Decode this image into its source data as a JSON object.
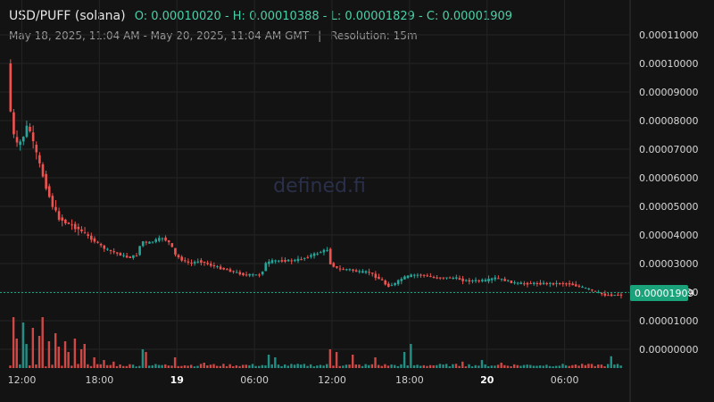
{
  "header": {
    "pair": "USD/PUFF (solana)",
    "ohlc": "O: 0.00010020 - H: 0.00010388 - L: 0.00001829 - C: 0.00001909",
    "range": "May 18, 2025, 11:04 AM - May 20, 2025, 11:04 AM GMT",
    "separator": "|",
    "resolution": "Resolution: 15m"
  },
  "watermark": "defined.fi",
  "colors": {
    "up": "#26a69a",
    "down": "#ef5350",
    "last_price_bg": "#1aa37a",
    "background": "#131313"
  },
  "chart_data": {
    "type": "candlestick",
    "title": "USD/PUFF (solana)",
    "resolution": "15m",
    "y_ticks": [
      "0.00011000",
      "0.00010000",
      "0.00009000",
      "0.00008000",
      "0.00007000",
      "0.00006000",
      "0.00005000",
      "0.00004000",
      "0.00003000",
      "0.00002000",
      "0.00001000",
      "0.00000000"
    ],
    "x_ticks": [
      {
        "label": "12:00",
        "hours": 1.0,
        "bold": false
      },
      {
        "label": "18:00",
        "hours": 7.0,
        "bold": false
      },
      {
        "label": "19",
        "hours": 13.0,
        "bold": true
      },
      {
        "label": "06:00",
        "hours": 19.0,
        "bold": false
      },
      {
        "label": "12:00",
        "hours": 25.0,
        "bold": false
      },
      {
        "label": "18:00",
        "hours": 31.0,
        "bold": false
      },
      {
        "label": "20",
        "hours": 37.0,
        "bold": true
      },
      {
        "label": "06:00",
        "hours": 43.0,
        "bold": false
      }
    ],
    "last_price": "0.00001909",
    "price_path": [
      [
        0.0,
        0.0001
      ],
      [
        0.15,
        8.8e-05
      ],
      [
        0.4,
        7.6e-05
      ],
      [
        0.8,
        7.1e-05
      ],
      [
        1.2,
        7.4e-05
      ],
      [
        1.6,
        7.9e-05
      ],
      [
        2.0,
        7.2e-05
      ],
      [
        2.4,
        6.6e-05
      ],
      [
        2.8,
        6e-05
      ],
      [
        3.2,
        5.4e-05
      ],
      [
        3.6,
        4.9e-05
      ],
      [
        4.0,
        4.6e-05
      ],
      [
        4.6,
        4.4e-05
      ],
      [
        5.2,
        4.3e-05
      ],
      [
        5.8,
        4.1e-05
      ],
      [
        6.4,
        3.9e-05
      ],
      [
        7.0,
        3.7e-05
      ],
      [
        7.6,
        3.5e-05
      ],
      [
        8.2,
        3.4e-05
      ],
      [
        8.8,
        3.3e-05
      ],
      [
        9.4,
        3.2e-05
      ],
      [
        10.0,
        3.3e-05
      ],
      [
        10.4,
        3.8e-05
      ],
      [
        10.8,
        3.7e-05
      ],
      [
        11.4,
        3.8e-05
      ],
      [
        12.0,
        3.9e-05
      ],
      [
        12.6,
        3.7e-05
      ],
      [
        13.0,
        3.3e-05
      ],
      [
        13.6,
        3.1e-05
      ],
      [
        14.2,
        3e-05
      ],
      [
        14.8,
        3.1e-05
      ],
      [
        15.4,
        3e-05
      ],
      [
        16.0,
        2.9e-05
      ],
      [
        16.8,
        2.8e-05
      ],
      [
        17.6,
        2.7e-05
      ],
      [
        18.4,
        2.6e-05
      ],
      [
        19.0,
        2.6e-05
      ],
      [
        19.6,
        2.6e-05
      ],
      [
        20.0,
        3e-05
      ],
      [
        20.6,
        3.1e-05
      ],
      [
        21.4,
        3.1e-05
      ],
      [
        22.2,
        3.1e-05
      ],
      [
        23.0,
        3.2e-05
      ],
      [
        23.6,
        3.3e-05
      ],
      [
        24.2,
        3.4e-05
      ],
      [
        24.8,
        3.5e-05
      ],
      [
        25.0,
        3e-05
      ],
      [
        25.6,
        2.8e-05
      ],
      [
        26.4,
        2.8e-05
      ],
      [
        27.2,
        2.7e-05
      ],
      [
        28.0,
        2.7e-05
      ],
      [
        28.6,
        2.5e-05
      ],
      [
        29.0,
        2.4e-05
      ],
      [
        29.4,
        2.2e-05
      ],
      [
        30.0,
        2.3e-05
      ],
      [
        30.6,
        2.5e-05
      ],
      [
        31.4,
        2.6e-05
      ],
      [
        32.2,
        2.6e-05
      ],
      [
        33.0,
        2.5e-05
      ],
      [
        33.8,
        2.5e-05
      ],
      [
        34.6,
        2.5e-05
      ],
      [
        35.4,
        2.4e-05
      ],
      [
        36.2,
        2.4e-05
      ],
      [
        37.0,
        2.4e-05
      ],
      [
        37.8,
        2.5e-05
      ],
      [
        38.6,
        2.4e-05
      ],
      [
        39.4,
        2.3e-05
      ],
      [
        40.2,
        2.3e-05
      ],
      [
        41.0,
        2.3e-05
      ],
      [
        41.8,
        2.3e-05
      ],
      [
        42.6,
        2.3e-05
      ],
      [
        43.4,
        2.3e-05
      ],
      [
        44.2,
        2.2e-05
      ],
      [
        45.0,
        2.1e-05
      ],
      [
        45.6,
        2e-05
      ],
      [
        46.2,
        1.9e-05
      ],
      [
        46.8,
        1.9e-05
      ],
      [
        47.6,
        1.9e-05
      ]
    ],
    "volume_spikes": [
      [
        0.2,
        0.95
      ],
      [
        0.6,
        0.55
      ],
      [
        1.0,
        0.85
      ],
      [
        1.3,
        0.45
      ],
      [
        1.8,
        0.75
      ],
      [
        2.2,
        0.6
      ],
      [
        2.6,
        0.95
      ],
      [
        3.0,
        0.5
      ],
      [
        3.4,
        0.65
      ],
      [
        3.8,
        0.4
      ],
      [
        4.2,
        0.5
      ],
      [
        4.6,
        0.3
      ],
      [
        5.0,
        0.55
      ],
      [
        5.4,
        0.35
      ],
      [
        5.8,
        0.45
      ],
      [
        6.4,
        0.2
      ],
      [
        7.2,
        0.15
      ],
      [
        8.0,
        0.12
      ],
      [
        10.2,
        0.35
      ],
      [
        10.6,
        0.3
      ],
      [
        12.8,
        0.2
      ],
      [
        15.0,
        0.1
      ],
      [
        20.0,
        0.25
      ],
      [
        20.6,
        0.2
      ],
      [
        24.8,
        0.35
      ],
      [
        25.2,
        0.3
      ],
      [
        26.6,
        0.25
      ],
      [
        28.2,
        0.2
      ],
      [
        30.4,
        0.3
      ],
      [
        31.0,
        0.45
      ],
      [
        35.0,
        0.12
      ],
      [
        36.4,
        0.15
      ],
      [
        38.0,
        0.1
      ],
      [
        46.6,
        0.22
      ]
    ]
  }
}
